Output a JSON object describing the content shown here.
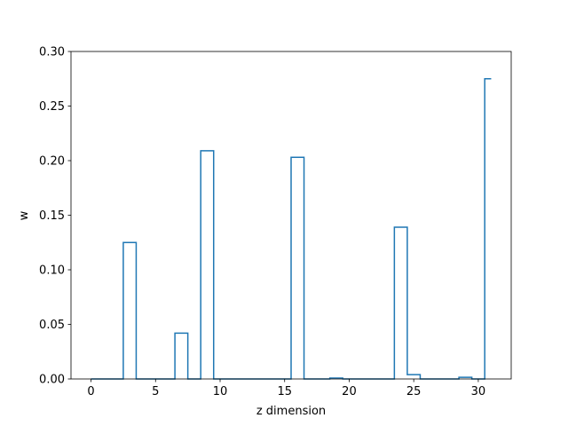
{
  "chart_data": {
    "type": "line",
    "step": "mid",
    "title": "",
    "xlabel": "z dimension",
    "ylabel": "w",
    "xlim": [
      -1.55,
      32.55
    ],
    "ylim": [
      0,
      0.3
    ],
    "xticks": [
      0,
      5,
      10,
      15,
      20,
      25,
      30
    ],
    "yticks": [
      0.0,
      0.05,
      0.1,
      0.15,
      0.2,
      0.25,
      0.3
    ],
    "xtick_labels": [
      "0",
      "5",
      "10",
      "15",
      "20",
      "25",
      "30"
    ],
    "ytick_labels": [
      "0.00",
      "0.05",
      "0.10",
      "0.15",
      "0.20",
      "0.25",
      "0.30"
    ],
    "grid": false,
    "colors": {
      "line": "#1f77b4"
    },
    "x": [
      0,
      1,
      2,
      3,
      4,
      5,
      6,
      7,
      8,
      9,
      10,
      11,
      12,
      13,
      14,
      15,
      16,
      17,
      18,
      19,
      20,
      21,
      22,
      23,
      24,
      25,
      26,
      27,
      28,
      29,
      30,
      31
    ],
    "values": [
      0,
      0,
      0,
      0.125,
      0,
      0,
      0,
      0.042,
      0,
      0.209,
      0,
      0,
      0,
      0,
      0,
      0,
      0.203,
      0,
      0,
      0.0008,
      0,
      0,
      0,
      0,
      0.139,
      0.004,
      0,
      0,
      0,
      0.0015,
      0,
      0.275
    ]
  }
}
